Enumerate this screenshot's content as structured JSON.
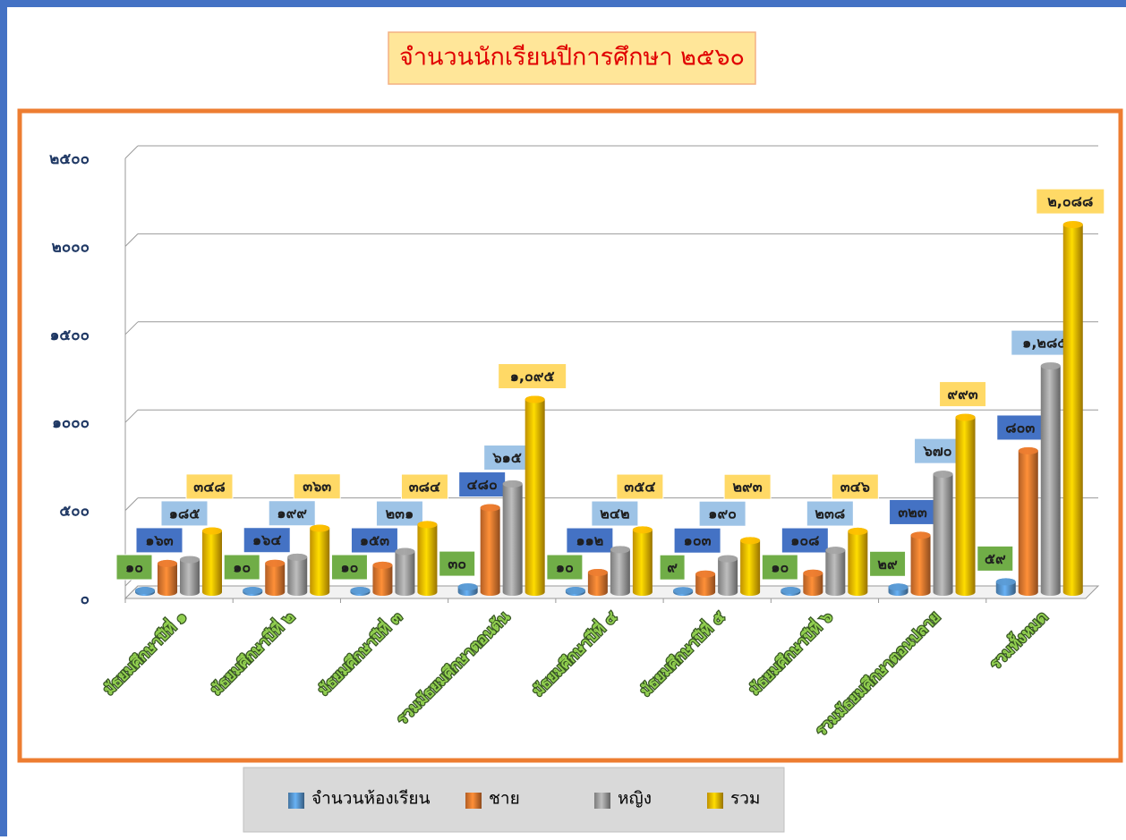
{
  "chart_data": {
    "type": "bar3d",
    "title": "จำนวนนักเรียนปีการศึกษา ๒๕๖๐",
    "categories": [
      "มัธยมศึกษาปีที่ ๑",
      "มัธยมศึกษาปีที่ ๒",
      "มัธยมศึกษาปีที่ ๓",
      "รวมมัธยมศึกษาตอนต้น",
      "มัธยมศึกษาปีที่ ๔",
      "มัธยมศึกษาปีที่ ๕",
      "มัธยมศึกษาปีที่ ๖",
      "รวมมัธยมศึกษาตอนปลาย",
      "รวมทั้งหมด"
    ],
    "series": [
      {
        "name": "จำนวนห้องเรียน",
        "color": "#5b9bd5",
        "label_color": "#70ad47",
        "values": [
          10,
          10,
          10,
          30,
          10,
          9,
          10,
          29,
          59
        ],
        "value_labels": [
          "๑๐",
          "๑๐",
          "๑๐",
          "๓๐",
          "๑๐",
          "๙",
          "๑๐",
          "๒๙",
          "๕๙"
        ]
      },
      {
        "name": "ชาย",
        "color": "#ed7d31",
        "label_color": "#4472c4",
        "values": [
          163,
          164,
          153,
          480,
          112,
          103,
          108,
          323,
          803
        ],
        "value_labels": [
          "๑๖๓",
          "๑๖๔",
          "๑๕๓",
          "๔๘๐",
          "๑๑๒",
          "๑๐๓",
          "๑๐๘",
          "๓๒๓",
          "๘๐๓"
        ]
      },
      {
        "name": "หญิง",
        "color": "#a5a5a5",
        "label_color": "#9dc3e6",
        "values": [
          185,
          199,
          231,
          615,
          242,
          190,
          238,
          670,
          1285
        ],
        "value_labels": [
          "๑๘๕",
          "๑๙๙",
          "๒๓๑",
          "๖๑๕",
          "๒๔๒",
          "๑๙๐",
          "๒๓๘",
          "๖๗๐",
          "๑,๒๘๕"
        ]
      },
      {
        "name": "รวม",
        "color": "#ffc000",
        "label_color": "#ffd966",
        "values": [
          348,
          363,
          384,
          1095,
          354,
          293,
          346,
          993,
          2088
        ],
        "value_labels": [
          "๓๔๘",
          "๓๖๓",
          "๓๘๔",
          "๑,๐๙๕",
          "๓๕๔",
          "๒๙๓",
          "๓๔๖",
          "๙๙๓",
          "๒,๐๘๘"
        ]
      }
    ],
    "ylim": [
      0,
      2500
    ],
    "yticks": [
      {
        "value": 0,
        "label": "๐"
      },
      {
        "value": 500,
        "label": "๕๐๐"
      },
      {
        "value": 1000,
        "label": "๑๐๐๐"
      },
      {
        "value": 1500,
        "label": "๑๕๐๐"
      },
      {
        "value": 2000,
        "label": "๒๐๐๐"
      },
      {
        "value": 2500,
        "label": "๒๕๐๐"
      }
    ],
    "grid": true,
    "legend": "bottom"
  }
}
